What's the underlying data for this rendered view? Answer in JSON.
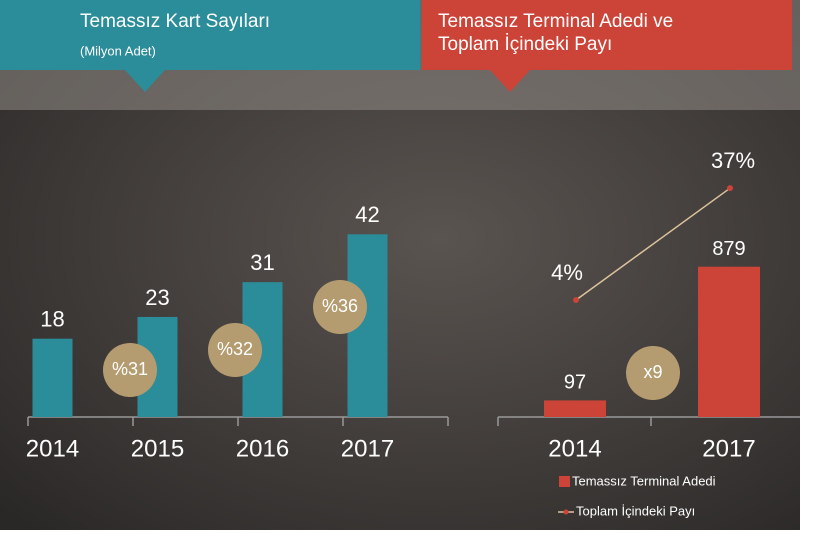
{
  "chart_data": [
    {
      "type": "bar",
      "title": "Temassız Kart Sayıları",
      "subtitle": "(Milyon Adet)",
      "categories": [
        "2014",
        "2015",
        "2016",
        "2017"
      ],
      "values": [
        18,
        23,
        31,
        42
      ],
      "color": "#2b8c9a",
      "annotations": [
        "%31",
        "%32",
        "%36"
      ],
      "annotation_color": "#b59c70"
    },
    {
      "type": "combo",
      "title_lines": [
        "Temassız Terminal Adedi ve",
        "Toplam İçindeki Payı"
      ],
      "categories": [
        "2014",
        "2017"
      ],
      "series": [
        {
          "name": "Temassız Terminal Adedi",
          "color": "#cc4338",
          "values": [
            97,
            879
          ]
        },
        {
          "name": "Toplam İçindeki Payı",
          "color": "#dcc39c",
          "values": [
            4,
            37
          ],
          "value_labels": [
            "4%",
            "37%"
          ],
          "axis": "y2"
        }
      ],
      "annotations": [
        "x9"
      ],
      "annotation_color": "#b59c70"
    }
  ]
}
